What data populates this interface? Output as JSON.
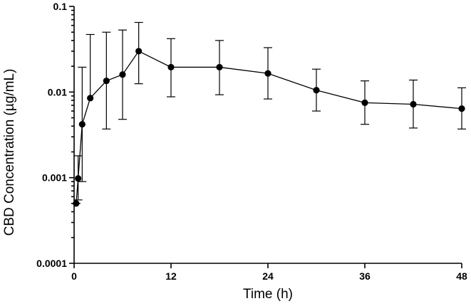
{
  "chart_data": {
    "type": "line",
    "title": "",
    "xlabel": "Time (h)",
    "ylabel": "CBD Concentration (µg/mL)",
    "xlim": [
      0,
      48
    ],
    "ylim": [
      0.0001,
      0.1
    ],
    "yscale": "log",
    "grid": false,
    "x_ticks": [
      0,
      12,
      24,
      36,
      48
    ],
    "x_tick_labels": [
      "0",
      "12",
      "24",
      "36",
      "48"
    ],
    "y_ticks": [
      0.0001,
      0.001,
      0.01,
      0.1
    ],
    "y_tick_labels": [
      "0.0001",
      "0.001",
      "0.01",
      "0.1"
    ],
    "series": [
      {
        "name": "CBD",
        "color": "#000000",
        "marker": "circle",
        "x": [
          0.25,
          0.5,
          1,
          2,
          4,
          6,
          8,
          12,
          18,
          24,
          30,
          36,
          42,
          48
        ],
        "y": [
          0.0005,
          0.00098,
          0.0042,
          0.0085,
          0.0135,
          0.016,
          0.03,
          0.0195,
          0.0195,
          0.0165,
          0.0105,
          0.0075,
          0.0072,
          0.0064
        ],
        "error_lower": [
          0.0005,
          0.00055,
          0.0009,
          null,
          0.0037,
          0.0048,
          0.0125,
          0.0088,
          0.0093,
          0.0083,
          0.006,
          0.0042,
          0.0038,
          0.0037
        ],
        "error_upper": [
          0.0005,
          0.0018,
          0.0195,
          0.047,
          0.05,
          0.053,
          0.065,
          0.042,
          0.04,
          0.033,
          0.0185,
          0.0135,
          0.0138,
          0.0112
        ]
      }
    ]
  }
}
